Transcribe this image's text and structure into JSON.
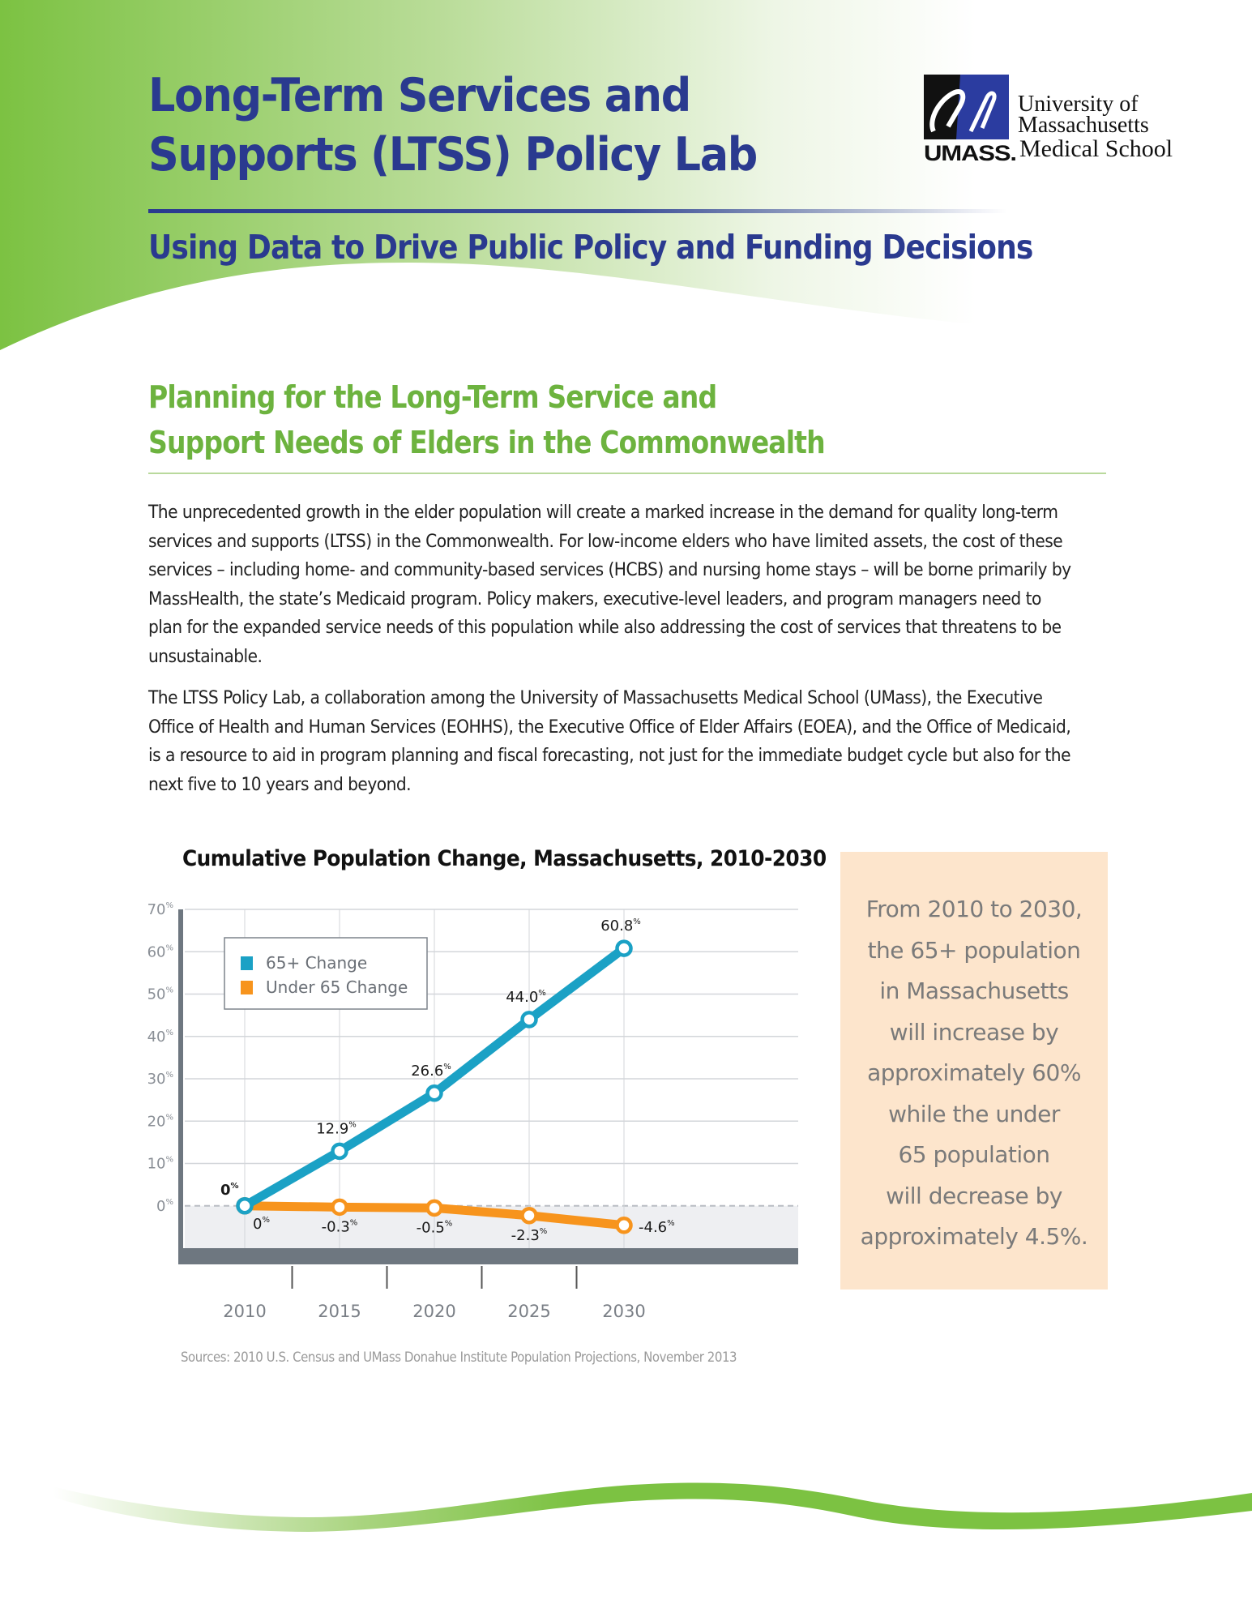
{
  "header": {
    "title_lines": [
      "Long-Term Services and",
      "Supports (LTSS) Policy Lab"
    ],
    "subtitle": "Using Data to Drive Public Policy and Funding Decisions"
  },
  "logo": {
    "text_lines": [
      "University of",
      "Massachusetts"
    ],
    "umass": "UMASS.",
    "school": "Medical School"
  },
  "section": {
    "title_lines": [
      "Planning for the Long-Term Service and",
      "Support Needs of Elders in the Commonwealth"
    ]
  },
  "paragraphs": [
    "The unprecedented growth in the elder population will create a marked increase in the demand for quality long-term services and supports (LTSS) in the Commonwealth. For low-income elders who have limited assets, the cost of these services – including home- and community-based services (HCBS) and nursing home stays – will be borne primarily by MassHealth, the state’s Medicaid program. Policy makers, executive-level leaders, and program managers need to plan for the expanded service needs of this population while also addressing the cost of services that threatens to be unsustainable.",
    "The LTSS Policy Lab, a collaboration among the University of Massachusetts Medical School (UMass), the Executive Office of Health and Human Services (EOHHS), the Executive Office of Elder Affairs (EOEA), and the Office of Medicaid, is a resource to aid in program planning and fiscal forecasting, not just for the immediate budget cycle but also for the next five to 10 years and beyond."
  ],
  "callout": {
    "lines": [
      "From 2010 to 2030,",
      "the 65+ population",
      "in Massachusetts",
      "will increase by",
      "approximately 60%",
      "while the under",
      "65 population",
      "will decrease by",
      "approximately 4.5%."
    ]
  },
  "sources": "Sources: 2010 U.S. Census and UMass Donahue Institute Population Projections, November 2013",
  "colors": {
    "brand_green": "#7ac143",
    "title_blue": "#2a3a8f",
    "series_65plus": "#1ba1c5",
    "series_under65": "#f7941d",
    "callout_bg": "#fde5cc",
    "axis_gray": "#6e7780"
  },
  "chart_data": {
    "type": "line",
    "title": "Cumulative Population Change, Massachusetts, 2010-2030",
    "xlabel": "",
    "ylabel": "",
    "categories": [
      "2010",
      "2015",
      "2020",
      "2025",
      "2030"
    ],
    "series": [
      {
        "name": "65+ Change",
        "values": [
          0,
          12.9,
          26.6,
          44.0,
          60.8
        ],
        "labels": [
          "0%",
          "12.9%",
          "26.6%",
          "44.0%",
          "60.8%"
        ]
      },
      {
        "name": "Under 65 Change",
        "values": [
          0,
          -0.3,
          -0.5,
          -2.3,
          -4.6
        ],
        "labels": [
          "0%",
          "-0.3%",
          "-0.5%",
          "-2.3%",
          "-4.6%"
        ]
      }
    ],
    "ylim": [
      -10,
      70
    ],
    "yticks": [
      0,
      10,
      20,
      30,
      40,
      50,
      60,
      70
    ],
    "ytick_labels": [
      "0%",
      "10%",
      "20%",
      "30%",
      "40%",
      "50%",
      "60%",
      "70%"
    ],
    "grid": true,
    "legend": "top-left",
    "source": "Sources: 2010 U.S. Census and UMass Donahue Institute Population Projections, November 2013"
  }
}
